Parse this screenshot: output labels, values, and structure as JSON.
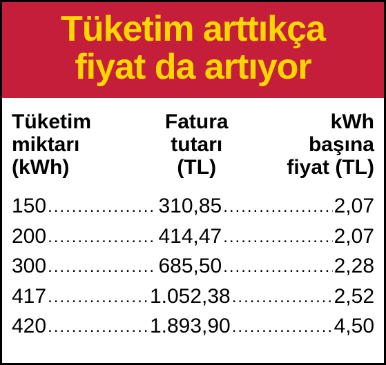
{
  "title_line1": "Tüketim arttıkça",
  "title_line2": "fiyat da artıyor",
  "header_bg_color": "#c41e3a",
  "header_text_color": "#ffd700",
  "body_bg_color": "#ffffff",
  "text_color": "#000000",
  "border_color": "#000000",
  "title_fontsize": 52,
  "header_fontsize": 30,
  "cell_fontsize": 30,
  "columns": [
    {
      "line1": "Tüketim",
      "line2": "miktarı",
      "line3": "(kWh)",
      "align": "left"
    },
    {
      "line1": "Fatura",
      "line2": "tutarı",
      "line3": "(TL)",
      "align": "center"
    },
    {
      "line1": "kWh",
      "line2": "başına",
      "line3": "fiyat (TL)",
      "align": "right"
    }
  ],
  "rows": [
    {
      "consumption": "150",
      "bill": "310,85",
      "unit_price": "2,07"
    },
    {
      "consumption": "200",
      "bill": "414,47",
      "unit_price": "2,07"
    },
    {
      "consumption": "300",
      "bill": "685,50",
      "unit_price": "2,28"
    },
    {
      "consumption": "417",
      "bill": "1.052,38",
      "unit_price": "2,52"
    },
    {
      "consumption": "420",
      "bill": "1.893,90",
      "unit_price": "4,50"
    }
  ]
}
